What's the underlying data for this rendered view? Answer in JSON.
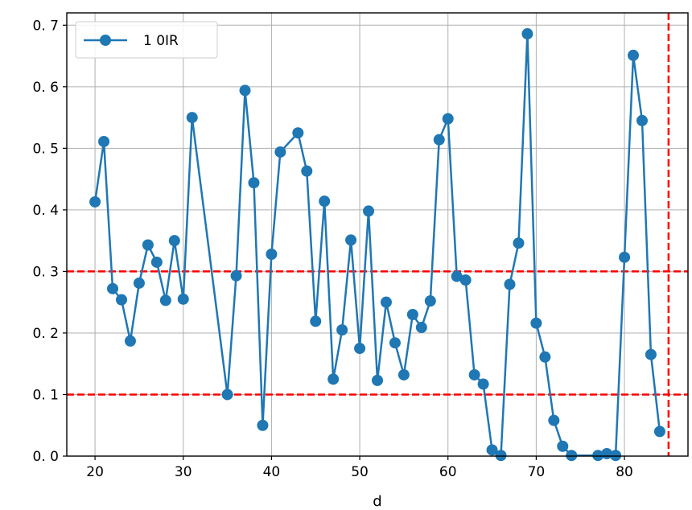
{
  "chart_data": {
    "type": "line",
    "title": "",
    "xlabel": "d",
    "ylabel": "",
    "xlim": [
      16.8,
      87.2
    ],
    "ylim": [
      0.0,
      0.72
    ],
    "xticks": [
      20,
      30,
      40,
      50,
      60,
      70,
      80
    ],
    "yticks": [
      0.0,
      0.1,
      0.2,
      0.3,
      0.4,
      0.5,
      0.6,
      0.7
    ],
    "ytick_labels": [
      "0. 0",
      "0. 1",
      "0. 2",
      "0. 3",
      "0. 4",
      "0. 5",
      "0. 6",
      "0. 7"
    ],
    "grid": true,
    "legend_position": "top-left",
    "series": [
      {
        "name": "1 0IR",
        "color": "#1f77b4",
        "x": [
          20,
          21,
          22,
          23,
          24,
          25,
          26,
          27,
          28,
          29,
          30,
          31,
          35,
          36,
          37,
          38,
          39,
          40,
          41,
          43,
          44,
          45,
          46,
          47,
          48,
          49,
          50,
          51,
          52,
          53,
          54,
          55,
          56,
          57,
          58,
          59,
          60,
          61,
          62,
          63,
          64,
          65,
          66,
          67,
          68,
          69,
          70,
          71,
          72,
          73,
          74,
          77,
          78,
          79,
          80,
          81,
          82,
          83,
          84
        ],
        "y": [
          0.413,
          0.511,
          0.272,
          0.254,
          0.187,
          0.281,
          0.343,
          0.315,
          0.253,
          0.35,
          0.255,
          0.55,
          0.1,
          0.293,
          0.594,
          0.444,
          0.05,
          0.328,
          0.494,
          0.525,
          0.463,
          0.219,
          0.414,
          0.125,
          0.205,
          0.351,
          0.175,
          0.398,
          0.123,
          0.25,
          0.184,
          0.132,
          0.23,
          0.209,
          0.252,
          0.514,
          0.548,
          0.292,
          0.286,
          0.132,
          0.117,
          0.01,
          0.001,
          0.279,
          0.346,
          0.686,
          0.216,
          0.161,
          0.058,
          0.016,
          0.001,
          0.001,
          0.004,
          0.001,
          0.323,
          0.651,
          0.545,
          0.165,
          0.04
        ]
      }
    ],
    "reference_lines": [
      {
        "orientation": "horizontal",
        "value": 0.3,
        "color": "#ff0000",
        "style": "dashed"
      },
      {
        "orientation": "horizontal",
        "value": 0.1,
        "color": "#ff0000",
        "style": "dashed"
      },
      {
        "orientation": "vertical",
        "value": 85,
        "color": "#ff0000",
        "style": "dashed"
      }
    ]
  }
}
